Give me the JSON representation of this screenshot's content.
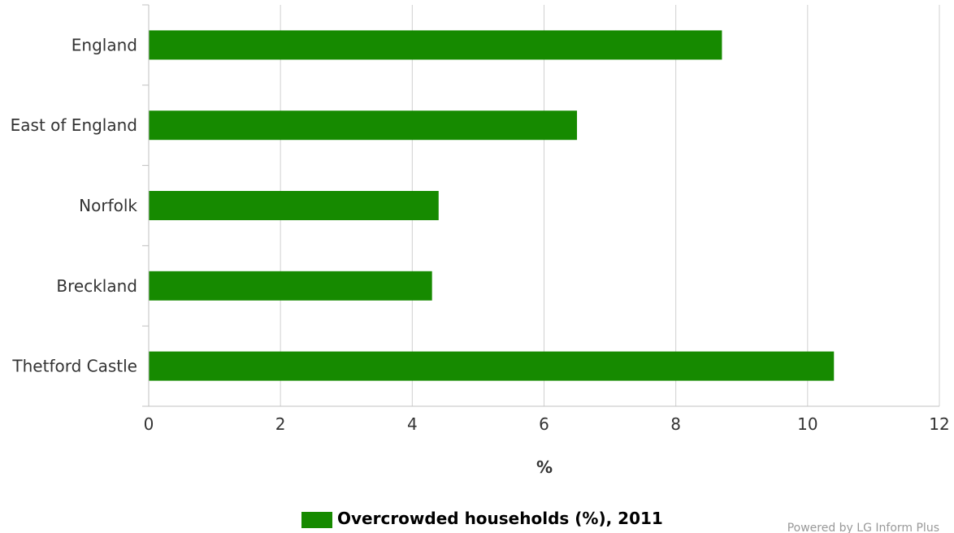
{
  "chart_data": {
    "type": "bar",
    "orientation": "horizontal",
    "categories": [
      "England",
      "East of England",
      "Norfolk",
      "Breckland",
      "Thetford Castle"
    ],
    "series": [
      {
        "name": "Overcrowded households (%), 2011",
        "values": [
          8.7,
          6.5,
          4.4,
          4.3,
          10.4
        ],
        "color": "#168A00"
      }
    ],
    "xlabel": "%",
    "xlim": [
      0,
      12
    ],
    "xticks": [
      "0",
      "2",
      "4",
      "6",
      "8",
      "10",
      "12"
    ],
    "grid": "vertical",
    "legend_position": "bottom-center"
  },
  "credit": "Powered by LG Inform Plus"
}
